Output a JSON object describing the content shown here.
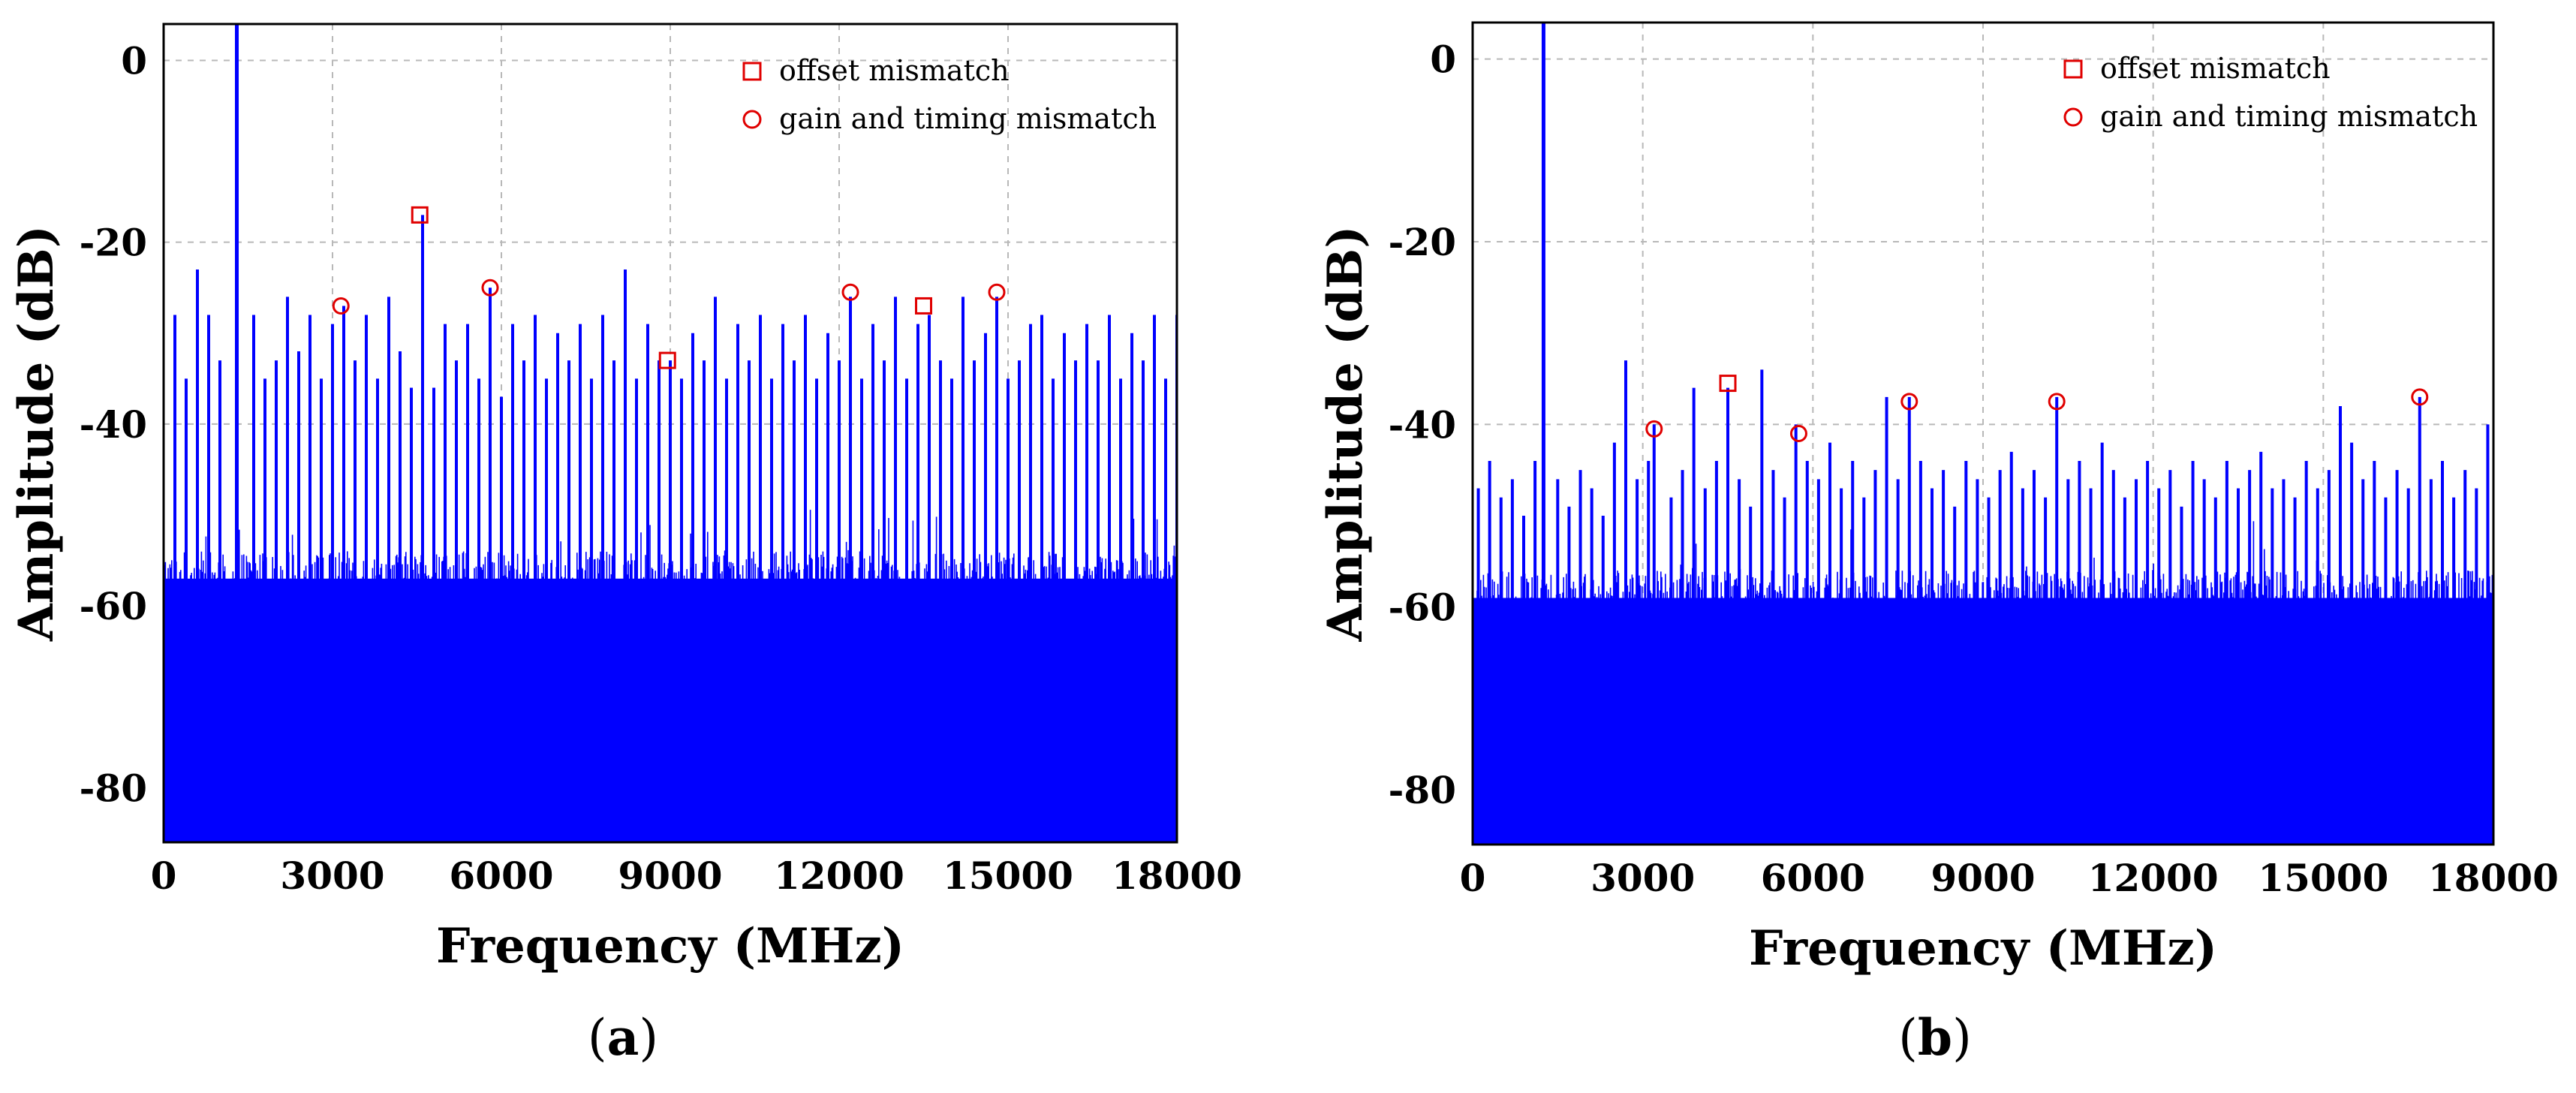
{
  "chart_data": [
    {
      "type": "line",
      "panel": "a",
      "caption": "a",
      "xlabel": "Frequency (MHz)",
      "ylabel": "Amplitude (dB)",
      "xlim": [
        0,
        18000
      ],
      "ylim": [
        -86,
        4
      ],
      "xticks": [
        0,
        3000,
        6000,
        9000,
        12000,
        15000,
        18000
      ],
      "xtick_labels": [
        "0",
        "3000",
        "6000",
        "9000",
        "12000",
        "15000",
        "18000"
      ],
      "yticks": [
        0,
        -20,
        -40,
        -60,
        -80
      ],
      "ytick_labels": [
        "0",
        "-20",
        "-40",
        "-60",
        "-80"
      ],
      "grid": true,
      "noise_floor_db": -58,
      "fundamental": {
        "x": 1300,
        "y": 4
      },
      "series": [
        {
          "color": "#0000ff",
          "spurs": [
            {
              "x": 200,
              "y": -28
            },
            {
              "x": 400,
              "y": -35
            },
            {
              "x": 600,
              "y": -23
            },
            {
              "x": 800,
              "y": -28
            },
            {
              "x": 1000,
              "y": -33
            },
            {
              "x": 1600,
              "y": -28
            },
            {
              "x": 1800,
              "y": -35
            },
            {
              "x": 2000,
              "y": -33
            },
            {
              "x": 2200,
              "y": -26
            },
            {
              "x": 2400,
              "y": -32
            },
            {
              "x": 2600,
              "y": -28
            },
            {
              "x": 2800,
              "y": -35
            },
            {
              "x": 3000,
              "y": -29
            },
            {
              "x": 3200,
              "y": -27
            },
            {
              "x": 3400,
              "y": -33
            },
            {
              "x": 3600,
              "y": -28
            },
            {
              "x": 3800,
              "y": -35
            },
            {
              "x": 4000,
              "y": -26
            },
            {
              "x": 4200,
              "y": -32
            },
            {
              "x": 4400,
              "y": -36
            },
            {
              "x": 4600,
              "y": -17
            },
            {
              "x": 4800,
              "y": -36
            },
            {
              "x": 5000,
              "y": -29
            },
            {
              "x": 5200,
              "y": -33
            },
            {
              "x": 5400,
              "y": -29
            },
            {
              "x": 5600,
              "y": -35
            },
            {
              "x": 5800,
              "y": -25
            },
            {
              "x": 6000,
              "y": -37
            },
            {
              "x": 6200,
              "y": -29
            },
            {
              "x": 6400,
              "y": -33
            },
            {
              "x": 6600,
              "y": -28
            },
            {
              "x": 6800,
              "y": -35
            },
            {
              "x": 7000,
              "y": -30
            },
            {
              "x": 7200,
              "y": -33
            },
            {
              "x": 7400,
              "y": -29
            },
            {
              "x": 7600,
              "y": -35
            },
            {
              "x": 7800,
              "y": -28
            },
            {
              "x": 8000,
              "y": -33
            },
            {
              "x": 8200,
              "y": -23
            },
            {
              "x": 8400,
              "y": -35
            },
            {
              "x": 8600,
              "y": -29
            },
            {
              "x": 8800,
              "y": -33
            },
            {
              "x": 9000,
              "y": -33
            },
            {
              "x": 9200,
              "y": -35
            },
            {
              "x": 9400,
              "y": -30
            },
            {
              "x": 9600,
              "y": -33
            },
            {
              "x": 9800,
              "y": -26
            },
            {
              "x": 10000,
              "y": -35
            },
            {
              "x": 10200,
              "y": -29
            },
            {
              "x": 10400,
              "y": -33
            },
            {
              "x": 10600,
              "y": -28
            },
            {
              "x": 10800,
              "y": -35
            },
            {
              "x": 11000,
              "y": -29
            },
            {
              "x": 11200,
              "y": -33
            },
            {
              "x": 11400,
              "y": -28
            },
            {
              "x": 11600,
              "y": -35
            },
            {
              "x": 11800,
              "y": -30
            },
            {
              "x": 12000,
              "y": -33
            },
            {
              "x": 12200,
              "y": -26
            },
            {
              "x": 12400,
              "y": -35
            },
            {
              "x": 12600,
              "y": -29
            },
            {
              "x": 12800,
              "y": -33
            },
            {
              "x": 13000,
              "y": -26
            },
            {
              "x": 13200,
              "y": -35
            },
            {
              "x": 13400,
              "y": -29
            },
            {
              "x": 13600,
              "y": -28
            },
            {
              "x": 13800,
              "y": -33
            },
            {
              "x": 14000,
              "y": -35
            },
            {
              "x": 14200,
              "y": -26
            },
            {
              "x": 14400,
              "y": -33
            },
            {
              "x": 14600,
              "y": -30
            },
            {
              "x": 14800,
              "y": -26
            },
            {
              "x": 15000,
              "y": -35
            },
            {
              "x": 15200,
              "y": -33
            },
            {
              "x": 15400,
              "y": -29
            },
            {
              "x": 15600,
              "y": -28
            },
            {
              "x": 15800,
              "y": -35
            },
            {
              "x": 16000,
              "y": -30
            },
            {
              "x": 16200,
              "y": -33
            },
            {
              "x": 16400,
              "y": -29
            },
            {
              "x": 16600,
              "y": -33
            },
            {
              "x": 16800,
              "y": -28
            },
            {
              "x": 17000,
              "y": -35
            },
            {
              "x": 17200,
              "y": -30
            },
            {
              "x": 17400,
              "y": -33
            },
            {
              "x": 17600,
              "y": -28
            },
            {
              "x": 17800,
              "y": -35
            },
            {
              "x": 18000,
              "y": -28
            }
          ]
        }
      ],
      "markers": [
        {
          "kind": "gain and timing mismatch",
          "shape": "circle",
          "x": 3150,
          "y": -27
        },
        {
          "kind": "offset mismatch",
          "shape": "square",
          "x": 4550,
          "y": -17
        },
        {
          "kind": "gain and timing mismatch",
          "shape": "circle",
          "x": 5800,
          "y": -25
        },
        {
          "kind": "offset mismatch",
          "shape": "square",
          "x": 8950,
          "y": -33
        },
        {
          "kind": "gain and timing mismatch",
          "shape": "circle",
          "x": 12200,
          "y": -25.5
        },
        {
          "kind": "offset mismatch",
          "shape": "square",
          "x": 13500,
          "y": -27
        },
        {
          "kind": "gain and timing mismatch",
          "shape": "circle",
          "x": 14800,
          "y": -25.5
        }
      ],
      "legend": {
        "position": "top-right",
        "items": [
          {
            "label": "offset mismatch",
            "marker": "square",
            "color": "#e00000"
          },
          {
            "label": "gain and timing mismatch",
            "marker": "circle",
            "color": "#e00000"
          }
        ]
      }
    },
    {
      "type": "line",
      "panel": "b",
      "caption": "b",
      "xlabel": "Frequency (MHz)",
      "ylabel": "Amplitude (dB)",
      "xlim": [
        0,
        18000
      ],
      "ylim": [
        -86,
        4
      ],
      "xticks": [
        0,
        3000,
        6000,
        9000,
        12000,
        15000,
        18000
      ],
      "xtick_labels": [
        "0",
        "3000",
        "6000",
        "9000",
        "12000",
        "15000",
        "18000"
      ],
      "yticks": [
        0,
        -20,
        -40,
        -60,
        -80
      ],
      "ytick_labels": [
        "0",
        "-20",
        "-40",
        "-60",
        "-80"
      ],
      "grid": true,
      "noise_floor_db": -60,
      "fundamental": {
        "x": 1250,
        "y": 4
      },
      "series": [
        {
          "color": "#0000ff",
          "spurs": [
            {
              "x": 100,
              "y": -47
            },
            {
              "x": 300,
              "y": -44
            },
            {
              "x": 500,
              "y": -48
            },
            {
              "x": 700,
              "y": -46
            },
            {
              "x": 900,
              "y": -50
            },
            {
              "x": 1100,
              "y": -44
            },
            {
              "x": 1500,
              "y": -46
            },
            {
              "x": 1700,
              "y": -49
            },
            {
              "x": 1900,
              "y": -45
            },
            {
              "x": 2100,
              "y": -47
            },
            {
              "x": 2300,
              "y": -50
            },
            {
              "x": 2500,
              "y": -42
            },
            {
              "x": 2700,
              "y": -33
            },
            {
              "x": 2900,
              "y": -46
            },
            {
              "x": 3100,
              "y": -44
            },
            {
              "x": 3200,
              "y": -40
            },
            {
              "x": 3500,
              "y": -48
            },
            {
              "x": 3700,
              "y": -45
            },
            {
              "x": 3900,
              "y": -36
            },
            {
              "x": 4100,
              "y": -47
            },
            {
              "x": 4300,
              "y": -44
            },
            {
              "x": 4500,
              "y": -36
            },
            {
              "x": 4700,
              "y": -46
            },
            {
              "x": 4900,
              "y": -49
            },
            {
              "x": 5100,
              "y": -34
            },
            {
              "x": 5300,
              "y": -45
            },
            {
              "x": 5500,
              "y": -48
            },
            {
              "x": 5700,
              "y": -40
            },
            {
              "x": 5900,
              "y": -44
            },
            {
              "x": 6100,
              "y": -46
            },
            {
              "x": 6300,
              "y": -42
            },
            {
              "x": 6500,
              "y": -47
            },
            {
              "x": 6700,
              "y": -44
            },
            {
              "x": 6900,
              "y": -48
            },
            {
              "x": 7100,
              "y": -45
            },
            {
              "x": 7300,
              "y": -37
            },
            {
              "x": 7500,
              "y": -46
            },
            {
              "x": 7700,
              "y": -37
            },
            {
              "x": 7900,
              "y": -44
            },
            {
              "x": 8100,
              "y": -47
            },
            {
              "x": 8300,
              "y": -45
            },
            {
              "x": 8500,
              "y": -49
            },
            {
              "x": 8700,
              "y": -44
            },
            {
              "x": 8900,
              "y": -46
            },
            {
              "x": 9100,
              "y": -48
            },
            {
              "x": 9300,
              "y": -45
            },
            {
              "x": 9500,
              "y": -43
            },
            {
              "x": 9700,
              "y": -47
            },
            {
              "x": 9900,
              "y": -45
            },
            {
              "x": 10100,
              "y": -48
            },
            {
              "x": 10300,
              "y": -37
            },
            {
              "x": 10500,
              "y": -46
            },
            {
              "x": 10700,
              "y": -44
            },
            {
              "x": 10900,
              "y": -47
            },
            {
              "x": 11100,
              "y": -42
            },
            {
              "x": 11300,
              "y": -45
            },
            {
              "x": 11500,
              "y": -48
            },
            {
              "x": 11700,
              "y": -46
            },
            {
              "x": 11900,
              "y": -44
            },
            {
              "x": 12100,
              "y": -47
            },
            {
              "x": 12300,
              "y": -45
            },
            {
              "x": 12500,
              "y": -49
            },
            {
              "x": 12700,
              "y": -44
            },
            {
              "x": 12900,
              "y": -46
            },
            {
              "x": 13100,
              "y": -48
            },
            {
              "x": 13300,
              "y": -44
            },
            {
              "x": 13500,
              "y": -47
            },
            {
              "x": 13700,
              "y": -45
            },
            {
              "x": 13900,
              "y": -43
            },
            {
              "x": 14100,
              "y": -47
            },
            {
              "x": 14300,
              "y": -46
            },
            {
              "x": 14500,
              "y": -48
            },
            {
              "x": 14700,
              "y": -44
            },
            {
              "x": 14900,
              "y": -47
            },
            {
              "x": 15100,
              "y": -45
            },
            {
              "x": 15300,
              "y": -38
            },
            {
              "x": 15500,
              "y": -42
            },
            {
              "x": 15700,
              "y": -46
            },
            {
              "x": 15900,
              "y": -44
            },
            {
              "x": 16100,
              "y": -48
            },
            {
              "x": 16300,
              "y": -45
            },
            {
              "x": 16500,
              "y": -47
            },
            {
              "x": 16700,
              "y": -37
            },
            {
              "x": 16900,
              "y": -46
            },
            {
              "x": 17100,
              "y": -44
            },
            {
              "x": 17300,
              "y": -48
            },
            {
              "x": 17500,
              "y": -45
            },
            {
              "x": 17700,
              "y": -47
            },
            {
              "x": 17900,
              "y": -40
            }
          ]
        }
      ],
      "markers": [
        {
          "kind": "gain and timing mismatch",
          "shape": "circle",
          "x": 3200,
          "y": -40.5
        },
        {
          "kind": "offset mismatch",
          "shape": "square",
          "x": 4500,
          "y": -35.5
        },
        {
          "kind": "gain and timing mismatch",
          "shape": "circle",
          "x": 5750,
          "y": -41
        },
        {
          "kind": "gain and timing mismatch",
          "shape": "circle",
          "x": 7700,
          "y": -37.5
        },
        {
          "kind": "gain and timing mismatch",
          "shape": "circle",
          "x": 10300,
          "y": -37.5
        },
        {
          "kind": "gain and timing mismatch",
          "shape": "circle",
          "x": 16700,
          "y": -37
        }
      ],
      "legend": {
        "position": "top-right",
        "items": [
          {
            "label": "offset mismatch",
            "marker": "square",
            "color": "#e00000"
          },
          {
            "label": "gain and timing mismatch",
            "marker": "circle",
            "color": "#e00000"
          }
        ]
      }
    }
  ]
}
